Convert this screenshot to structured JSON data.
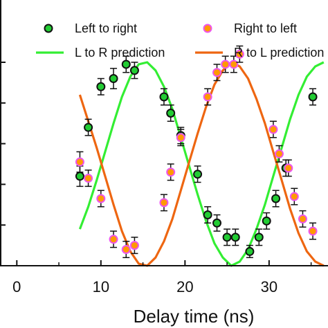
{
  "chart_data": {
    "type": "scatter",
    "xlabel": "Delay time (ns)",
    "ylabel": "",
    "title": "",
    "xlim": [
      -2,
      37.5
    ],
    "ylim": [
      0,
      1.0
    ],
    "x_ticks": [
      0,
      10,
      20,
      30
    ],
    "x_tick_labels": [
      "0",
      "10",
      "20",
      "30"
    ],
    "y_ticks": [
      0.0,
      0.2,
      0.4,
      0.6,
      0.8,
      1.0
    ],
    "grid": false,
    "legend_position": "top",
    "series": [
      {
        "name": "Left to right",
        "kind": "points",
        "color": "#22cc33",
        "edge_color": "#111111",
        "points": [
          {
            "x": 7.5,
            "y": 0.44,
            "err": 0.05
          },
          {
            "x": 8.5,
            "y": 0.68,
            "err": 0.04
          },
          {
            "x": 10.0,
            "y": 0.88,
            "err": 0.04
          },
          {
            "x": 11.5,
            "y": 0.92,
            "err": 0.05
          },
          {
            "x": 13.0,
            "y": 0.99,
            "err": 0.04
          },
          {
            "x": 14.0,
            "y": 0.96,
            "err": 0.04
          },
          {
            "x": 17.5,
            "y": 0.83,
            "err": 0.04
          },
          {
            "x": 18.3,
            "y": 0.75,
            "err": 0.04
          },
          {
            "x": 19.5,
            "y": 0.64,
            "err": 0.04
          },
          {
            "x": 21.5,
            "y": 0.45,
            "err": 0.04
          },
          {
            "x": 22.7,
            "y": 0.25,
            "err": 0.04
          },
          {
            "x": 23.8,
            "y": 0.21,
            "err": 0.04
          },
          {
            "x": 25.0,
            "y": 0.14,
            "err": 0.04
          },
          {
            "x": 26.0,
            "y": 0.14,
            "err": 0.04
          },
          {
            "x": 27.7,
            "y": 0.07,
            "err": 0.03
          },
          {
            "x": 28.8,
            "y": 0.14,
            "err": 0.04
          },
          {
            "x": 29.7,
            "y": 0.22,
            "err": 0.04
          },
          {
            "x": 30.8,
            "y": 0.33,
            "err": 0.04
          },
          {
            "x": 32.0,
            "y": 0.48,
            "err": 0.04
          },
          {
            "x": 35.2,
            "y": 0.83,
            "err": 0.04
          }
        ]
      },
      {
        "name": "Right to left",
        "kind": "points",
        "color": "#ff9900",
        "edge_color": "#ee55ee",
        "points": [
          {
            "x": 7.5,
            "y": 0.51,
            "err": 0.05
          },
          {
            "x": 8.5,
            "y": 0.43,
            "err": 0.04
          },
          {
            "x": 10.0,
            "y": 0.33,
            "err": 0.04
          },
          {
            "x": 11.5,
            "y": 0.13,
            "err": 0.04
          },
          {
            "x": 13.0,
            "y": 0.08,
            "err": 0.04
          },
          {
            "x": 14.0,
            "y": 0.1,
            "err": 0.04
          },
          {
            "x": 17.5,
            "y": 0.31,
            "err": 0.04
          },
          {
            "x": 18.3,
            "y": 0.46,
            "err": 0.04
          },
          {
            "x": 19.5,
            "y": 0.63,
            "err": 0.04
          },
          {
            "x": 22.7,
            "y": 0.83,
            "err": 0.04
          },
          {
            "x": 23.8,
            "y": 0.95,
            "err": 0.04
          },
          {
            "x": 24.8,
            "y": 0.99,
            "err": 0.04
          },
          {
            "x": 25.8,
            "y": 0.99,
            "err": 0.04
          },
          {
            "x": 26.5,
            "y": 1.04,
            "err": 0.04
          },
          {
            "x": 30.5,
            "y": 0.67,
            "err": 0.04
          },
          {
            "x": 31.2,
            "y": 0.55,
            "err": 0.04
          },
          {
            "x": 32.3,
            "y": 0.48,
            "err": 0.04
          },
          {
            "x": 33.0,
            "y": 0.34,
            "err": 0.04
          },
          {
            "x": 34.0,
            "y": 0.23,
            "err": 0.04
          },
          {
            "x": 35.2,
            "y": 0.17,
            "err": 0.04
          }
        ]
      },
      {
        "name": "L to R prediction",
        "kind": "line",
        "color": "#33ee33",
        "points": [
          {
            "x": 7.5,
            "y": 0.18
          },
          {
            "x": 8.5,
            "y": 0.29
          },
          {
            "x": 9.5,
            "y": 0.42
          },
          {
            "x": 10.5,
            "y": 0.56
          },
          {
            "x": 11.5,
            "y": 0.7
          },
          {
            "x": 12.5,
            "y": 0.83
          },
          {
            "x": 13.5,
            "y": 0.93
          },
          {
            "x": 14.5,
            "y": 0.99
          },
          {
            "x": 15.5,
            "y": 1.0
          },
          {
            "x": 16.5,
            "y": 0.96
          },
          {
            "x": 17.5,
            "y": 0.88
          },
          {
            "x": 18.5,
            "y": 0.77
          },
          {
            "x": 19.5,
            "y": 0.63
          },
          {
            "x": 20.5,
            "y": 0.49
          },
          {
            "x": 21.5,
            "y": 0.35
          },
          {
            "x": 22.5,
            "y": 0.22
          },
          {
            "x": 23.5,
            "y": 0.11
          },
          {
            "x": 24.5,
            "y": 0.04
          },
          {
            "x": 25.5,
            "y": 0.0
          },
          {
            "x": 26.5,
            "y": 0.02
          },
          {
            "x": 27.5,
            "y": 0.08
          },
          {
            "x": 28.5,
            "y": 0.18
          },
          {
            "x": 29.5,
            "y": 0.3
          },
          {
            "x": 30.5,
            "y": 0.44
          },
          {
            "x": 31.5,
            "y": 0.58
          },
          {
            "x": 32.5,
            "y": 0.72
          },
          {
            "x": 33.5,
            "y": 0.84
          },
          {
            "x": 34.5,
            "y": 0.93
          },
          {
            "x": 35.5,
            "y": 0.98
          },
          {
            "x": 36.5,
            "y": 1.0
          }
        ]
      },
      {
        "name": "R to L prediction",
        "kind": "line",
        "color": "#ee6611",
        "points": [
          {
            "x": 7.5,
            "y": 0.84
          },
          {
            "x": 8.5,
            "y": 0.71
          },
          {
            "x": 9.5,
            "y": 0.58
          },
          {
            "x": 10.5,
            "y": 0.44
          },
          {
            "x": 11.5,
            "y": 0.3
          },
          {
            "x": 12.5,
            "y": 0.17
          },
          {
            "x": 13.5,
            "y": 0.07
          },
          {
            "x": 14.5,
            "y": 0.01
          },
          {
            "x": 15.5,
            "y": 0.0
          },
          {
            "x": 16.5,
            "y": 0.04
          },
          {
            "x": 17.5,
            "y": 0.12
          },
          {
            "x": 18.5,
            "y": 0.23
          },
          {
            "x": 19.5,
            "y": 0.37
          },
          {
            "x": 20.5,
            "y": 0.51
          },
          {
            "x": 21.5,
            "y": 0.65
          },
          {
            "x": 22.5,
            "y": 0.78
          },
          {
            "x": 23.5,
            "y": 0.89
          },
          {
            "x": 24.5,
            "y": 0.96
          },
          {
            "x": 25.5,
            "y": 1.0
          },
          {
            "x": 26.5,
            "y": 0.98
          },
          {
            "x": 27.5,
            "y": 0.92
          },
          {
            "x": 28.5,
            "y": 0.82
          },
          {
            "x": 29.5,
            "y": 0.7
          },
          {
            "x": 30.5,
            "y": 0.56
          },
          {
            "x": 31.5,
            "y": 0.42
          },
          {
            "x": 32.5,
            "y": 0.28
          },
          {
            "x": 33.5,
            "y": 0.16
          },
          {
            "x": 34.5,
            "y": 0.07
          },
          {
            "x": 35.5,
            "y": 0.02
          },
          {
            "x": 36.5,
            "y": 0.0
          }
        ]
      }
    ],
    "legend": [
      {
        "label": "Left to right",
        "marker": "point",
        "color": "#22cc33",
        "edge_color": "#111111"
      },
      {
        "label": "Right to left",
        "marker": "point",
        "color": "#ff9900",
        "edge_color": "#ee55ee"
      },
      {
        "label": "L to R prediction",
        "marker": "line",
        "color": "#33ee33"
      },
      {
        "label": "R to L prediction",
        "marker": "line",
        "color": "#ee6611"
      }
    ]
  }
}
